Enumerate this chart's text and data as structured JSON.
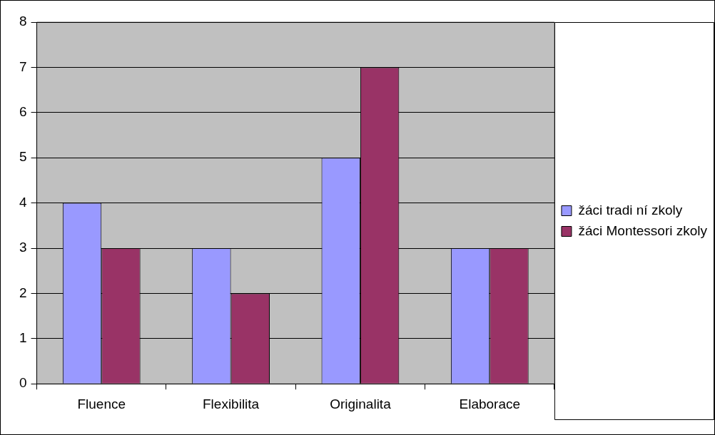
{
  "chart_data": {
    "type": "bar",
    "categories": [
      "Fluence",
      "Flexibilita",
      "Originalita",
      "Elaborace"
    ],
    "series": [
      {
        "name": "žáci tradi ní zkoly",
        "color": "#9999ff",
        "values": [
          4,
          3,
          5,
          3
        ]
      },
      {
        "name": "žáci Montessori zkoly",
        "color": "#993366",
        "values": [
          3,
          2,
          7,
          3
        ]
      }
    ],
    "ylim": [
      0,
      8
    ],
    "yticks": [
      0,
      1,
      2,
      3,
      4,
      5,
      6,
      7,
      8
    ],
    "grid": "y",
    "legend": "right"
  }
}
